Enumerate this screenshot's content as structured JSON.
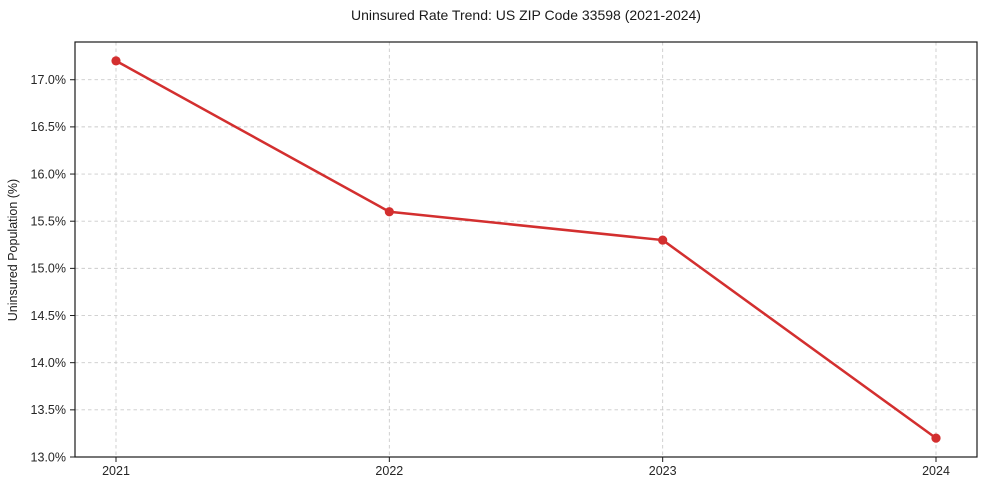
{
  "chart_data": {
    "type": "line",
    "title": "Uninsured Rate Trend: US ZIP Code 33598 (2021-2024)",
    "xlabel": "",
    "ylabel": "Uninsured Population (%)",
    "categories": [
      "2021",
      "2022",
      "2023",
      "2024"
    ],
    "values": [
      17.2,
      15.6,
      15.3,
      13.2
    ],
    "yticks": [
      13.0,
      13.5,
      14.0,
      14.5,
      15.0,
      15.5,
      16.0,
      16.5,
      17.0
    ],
    "ytick_suffix": "%",
    "ylim": [
      13.0,
      17.4
    ],
    "xlim": [
      -0.15,
      3.15
    ],
    "grid": true,
    "grid_style": "dashed",
    "legend_position": "none",
    "marker": "circle",
    "colors": {
      "line": "#d32f2f",
      "marker": "#d32f2f",
      "grid": "#cbcbcb",
      "axis": "#1a1a1a",
      "text": "#262626",
      "background": "#ffffff"
    }
  }
}
